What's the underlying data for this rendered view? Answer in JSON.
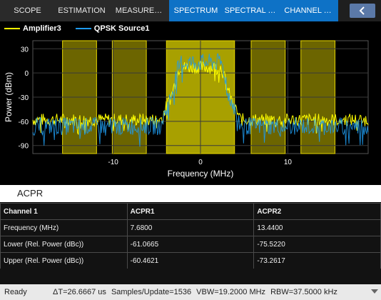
{
  "tabs": [
    {
      "label": "SCOPE"
    },
    {
      "label": "ESTIMATION"
    },
    {
      "label": "MEASURE…"
    },
    {
      "label": "SPECTRUM"
    },
    {
      "label": "SPECTRAL …"
    },
    {
      "label": "CHANNEL …"
    }
  ],
  "collapse_icon": "chevron-left-icon",
  "legend": [
    {
      "name": "Amplifier3",
      "color": "#ffff00"
    },
    {
      "name": "QPSK Source1",
      "color": "#1e9bef"
    }
  ],
  "chart_data": {
    "type": "line",
    "xlabel": "Frequency (MHz)",
    "ylabel": "Power (dBm)",
    "xlim": [
      -19.2,
      19.2
    ],
    "ylim": [
      -100,
      40
    ],
    "xticks": [
      -10,
      0,
      10
    ],
    "yticks": [
      30,
      0,
      -30,
      -60,
      -90
    ],
    "grid": true,
    "legend_position": "top",
    "channel_bands": [
      {
        "x": [
          -15.8,
          -11.9
        ],
        "label": "lower-2"
      },
      {
        "x": [
          -10.1,
          -6.2
        ],
        "label": "lower-1"
      },
      {
        "x": [
          -3.9,
          3.9
        ],
        "label": "main"
      },
      {
        "x": [
          5.8,
          9.7
        ],
        "label": "upper-1"
      },
      {
        "x": [
          11.5,
          15.4
        ],
        "label": "upper-2"
      }
    ],
    "series": [
      {
        "name": "Amplifier3",
        "color": "#ffff00",
        "floor_dbm": -58,
        "inband_dbm": 7,
        "noise_dbm": 8
      },
      {
        "name": "QPSK Source1",
        "color": "#1e9bef",
        "floor_dbm": -66,
        "inband_dbm": 13,
        "noise_dbm": 11
      }
    ]
  },
  "acpr": {
    "title": "ACPR",
    "headers": [
      "Channel 1",
      "ACPR1",
      "ACPR2"
    ],
    "rows": [
      {
        "label": "Frequency (MHz)",
        "acpr1": "7.6800",
        "acpr2": "13.4400"
      },
      {
        "label": "Lower (Rel. Power (dBc))",
        "acpr1": "-61.0665",
        "acpr2": "-75.5220"
      },
      {
        "label": "Upper (Rel. Power (dBc))",
        "acpr1": "-60.4621",
        "acpr2": "-73.2617"
      }
    ]
  },
  "status": {
    "ready": "Ready",
    "dt": "ΔT=26.6667 us",
    "samples": "Samples/Update=1536",
    "vbw": "VBW=19.2000 MHz",
    "rbw": "RBW=37.5000 kHz"
  }
}
